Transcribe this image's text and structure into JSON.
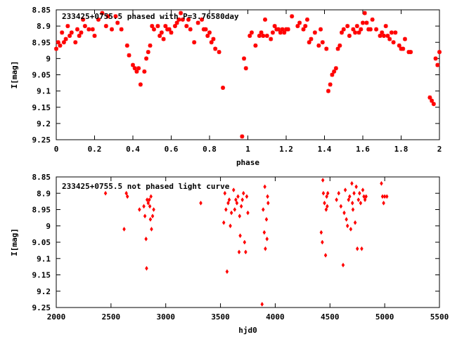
{
  "chart_data": [
    {
      "type": "scatter",
      "title": "233425+0755.5 phased with P=3.76580day",
      "xlabel": "phase",
      "ylabel": "I[mag]",
      "xlim": [
        0,
        2
      ],
      "ylim": [
        8.85,
        9.25
      ],
      "y_inverted": true,
      "marker": "star",
      "grid": false,
      "x_ticks": [
        "0",
        "0.2",
        "0.4",
        "0.6",
        "0.8",
        "1",
        "1.2",
        "1.4",
        "1.6",
        "1.8",
        "2"
      ],
      "y_ticks": [
        "8.85",
        "8.9",
        "8.95",
        "9",
        "9.05",
        "9.1",
        "9.15",
        "9.2",
        "9.25"
      ],
      "color": "#ff0000",
      "points": [
        [
          0.0,
          8.97
        ],
        [
          0.01,
          8.95
        ],
        [
          0.02,
          8.96
        ],
        [
          0.03,
          8.92
        ],
        [
          0.04,
          8.95
        ],
        [
          0.05,
          8.94
        ],
        [
          0.06,
          8.9
        ],
        [
          0.07,
          8.93
        ],
        [
          0.08,
          8.92
        ],
        [
          0.1,
          8.95
        ],
        [
          0.11,
          8.91
        ],
        [
          0.12,
          8.93
        ],
        [
          0.13,
          8.92
        ],
        [
          0.14,
          8.88
        ],
        [
          0.15,
          8.9
        ],
        [
          0.17,
          8.91
        ],
        [
          0.19,
          8.91
        ],
        [
          0.2,
          8.93
        ],
        [
          0.22,
          8.88
        ],
        [
          0.24,
          8.86
        ],
        [
          0.26,
          8.9
        ],
        [
          0.27,
          8.87
        ],
        [
          0.29,
          8.91
        ],
        [
          0.31,
          8.87
        ],
        [
          0.32,
          8.89
        ],
        [
          0.34,
          8.91
        ],
        [
          0.37,
          8.96
        ],
        [
          0.38,
          8.99
        ],
        [
          0.4,
          9.02
        ],
        [
          0.41,
          9.03
        ],
        [
          0.42,
          9.04
        ],
        [
          0.43,
          9.03
        ],
        [
          0.44,
          9.08
        ],
        [
          0.46,
          9.04
        ],
        [
          0.47,
          9.0
        ],
        [
          0.48,
          8.98
        ],
        [
          0.49,
          8.96
        ],
        [
          0.5,
          8.9
        ],
        [
          0.51,
          8.91
        ],
        [
          0.53,
          8.9
        ],
        [
          0.54,
          8.93
        ],
        [
          0.55,
          8.92
        ],
        [
          0.56,
          8.94
        ],
        [
          0.57,
          8.9
        ],
        [
          0.58,
          8.91
        ],
        [
          0.59,
          8.91
        ],
        [
          0.6,
          8.92
        ],
        [
          0.62,
          8.9
        ],
        [
          0.63,
          8.89
        ],
        [
          0.64,
          8.88
        ],
        [
          0.65,
          8.86
        ],
        [
          0.66,
          8.88
        ],
        [
          0.68,
          8.9
        ],
        [
          0.69,
          8.88
        ],
        [
          0.7,
          8.91
        ],
        [
          0.72,
          8.95
        ],
        [
          0.74,
          8.89
        ],
        [
          0.76,
          8.88
        ],
        [
          0.77,
          8.91
        ],
        [
          0.78,
          8.91
        ],
        [
          0.79,
          8.93
        ],
        [
          0.8,
          8.92
        ],
        [
          0.81,
          8.95
        ],
        [
          0.82,
          8.94
        ],
        [
          0.83,
          8.97
        ],
        [
          0.85,
          8.98
        ],
        [
          0.87,
          9.09
        ],
        [
          0.97,
          9.24
        ],
        [
          0.98,
          9.0
        ],
        [
          0.99,
          9.03
        ],
        [
          1.01,
          8.93
        ],
        [
          1.02,
          8.92
        ],
        [
          1.04,
          8.96
        ],
        [
          1.06,
          8.93
        ],
        [
          1.07,
          8.92
        ],
        [
          1.08,
          8.93
        ],
        [
          1.09,
          8.88
        ],
        [
          1.1,
          8.93
        ],
        [
          1.12,
          8.94
        ],
        [
          1.13,
          8.92
        ],
        [
          1.14,
          8.9
        ],
        [
          1.15,
          8.91
        ],
        [
          1.16,
          8.91
        ],
        [
          1.17,
          8.92
        ],
        [
          1.18,
          8.91
        ],
        [
          1.19,
          8.92
        ],
        [
          1.2,
          8.91
        ],
        [
          1.21,
          8.91
        ],
        [
          1.23,
          8.87
        ],
        [
          1.26,
          8.9
        ],
        [
          1.27,
          8.89
        ],
        [
          1.29,
          8.91
        ],
        [
          1.3,
          8.9
        ],
        [
          1.31,
          8.88
        ],
        [
          1.32,
          8.95
        ],
        [
          1.33,
          8.94
        ],
        [
          1.35,
          8.92
        ],
        [
          1.37,
          8.96
        ],
        [
          1.38,
          8.91
        ],
        [
          1.39,
          8.95
        ],
        [
          1.41,
          8.97
        ],
        [
          1.42,
          9.1
        ],
        [
          1.43,
          9.08
        ],
        [
          1.44,
          9.05
        ],
        [
          1.45,
          9.04
        ],
        [
          1.46,
          9.03
        ],
        [
          1.47,
          8.97
        ],
        [
          1.48,
          8.96
        ],
        [
          1.49,
          8.92
        ],
        [
          1.5,
          8.91
        ],
        [
          1.52,
          8.9
        ],
        [
          1.53,
          8.93
        ],
        [
          1.55,
          8.91
        ],
        [
          1.56,
          8.92
        ],
        [
          1.57,
          8.9
        ],
        [
          1.58,
          8.92
        ],
        [
          1.59,
          8.91
        ],
        [
          1.6,
          8.89
        ],
        [
          1.61,
          8.86
        ],
        [
          1.62,
          8.89
        ],
        [
          1.63,
          8.91
        ],
        [
          1.64,
          8.91
        ],
        [
          1.65,
          8.88
        ],
        [
          1.67,
          8.91
        ],
        [
          1.69,
          8.93
        ],
        [
          1.7,
          8.92
        ],
        [
          1.71,
          8.93
        ],
        [
          1.72,
          8.9
        ],
        [
          1.73,
          8.93
        ],
        [
          1.74,
          8.94
        ],
        [
          1.75,
          8.92
        ],
        [
          1.76,
          8.95
        ],
        [
          1.77,
          8.92
        ],
        [
          1.79,
          8.96
        ],
        [
          1.8,
          8.97
        ],
        [
          1.81,
          8.97
        ],
        [
          1.82,
          8.94
        ],
        [
          1.84,
          8.98
        ],
        [
          1.85,
          8.98
        ],
        [
          1.95,
          9.12
        ],
        [
          1.96,
          9.13
        ],
        [
          1.97,
          9.14
        ],
        [
          1.98,
          9.0
        ],
        [
          1.99,
          9.02
        ],
        [
          2.0,
          8.98
        ]
      ]
    },
    {
      "type": "scatter",
      "title": "233425+0755.5 not phased light curve",
      "xlabel": "hjd0",
      "ylabel": "I[mag]",
      "xlim": [
        2000,
        5500
      ],
      "ylim": [
        8.85,
        9.25
      ],
      "y_inverted": true,
      "marker": "diamond",
      "grid": false,
      "x_ticks": [
        "2000",
        "2500",
        "3000",
        "3500",
        "4000",
        "4500",
        "5000",
        "5500"
      ],
      "y_ticks": [
        "8.85",
        "8.9",
        "8.95",
        "9",
        "9.05",
        "9.1",
        "9.15",
        "9.2",
        "9.25"
      ],
      "color": "#ff0000",
      "points": [
        [
          2450,
          8.9
        ],
        [
          2620,
          9.01
        ],
        [
          2640,
          8.9
        ],
        [
          2650,
          8.91
        ],
        [
          2760,
          8.95
        ],
        [
          2800,
          8.94
        ],
        [
          2810,
          8.97
        ],
        [
          2820,
          9.04
        ],
        [
          2825,
          9.13
        ],
        [
          2830,
          8.92
        ],
        [
          2840,
          8.93
        ],
        [
          2850,
          8.92
        ],
        [
          2855,
          8.94
        ],
        [
          2860,
          8.98
        ],
        [
          2865,
          8.91
        ],
        [
          2870,
          9.01
        ],
        [
          2880,
          8.97
        ],
        [
          2890,
          8.95
        ],
        [
          3320,
          8.93
        ],
        [
          3530,
          8.99
        ],
        [
          3540,
          8.9
        ],
        [
          3550,
          8.95
        ],
        [
          3560,
          9.14
        ],
        [
          3570,
          8.93
        ],
        [
          3580,
          8.92
        ],
        [
          3590,
          9.0
        ],
        [
          3600,
          8.96
        ],
        [
          3620,
          8.89
        ],
        [
          3630,
          8.95
        ],
        [
          3640,
          8.92
        ],
        [
          3650,
          8.93
        ],
        [
          3660,
          8.91
        ],
        [
          3670,
          9.08
        ],
        [
          3675,
          8.97
        ],
        [
          3680,
          9.03
        ],
        [
          3690,
          8.94
        ],
        [
          3700,
          8.92
        ],
        [
          3710,
          8.9
        ],
        [
          3720,
          9.05
        ],
        [
          3730,
          9.08
        ],
        [
          3740,
          8.91
        ],
        [
          3750,
          8.96
        ],
        [
          3880,
          9.24
        ],
        [
          3890,
          8.95
        ],
        [
          3900,
          9.02
        ],
        [
          3905,
          8.88
        ],
        [
          3910,
          9.07
        ],
        [
          3920,
          8.98
        ],
        [
          3925,
          9.04
        ],
        [
          3930,
          8.91
        ],
        [
          3935,
          8.93
        ],
        [
          4420,
          9.02
        ],
        [
          4430,
          9.05
        ],
        [
          4435,
          8.86
        ],
        [
          4440,
          8.9
        ],
        [
          4450,
          8.93
        ],
        [
          4460,
          9.09
        ],
        [
          4465,
          8.95
        ],
        [
          4470,
          8.91
        ],
        [
          4475,
          8.94
        ],
        [
          4480,
          8.9
        ],
        [
          4560,
          8.92
        ],
        [
          4580,
          8.9
        ],
        [
          4600,
          8.94
        ],
        [
          4620,
          9.12
        ],
        [
          4630,
          8.96
        ],
        [
          4640,
          8.89
        ],
        [
          4650,
          8.98
        ],
        [
          4660,
          9.0
        ],
        [
          4670,
          8.92
        ],
        [
          4680,
          8.91
        ],
        [
          4690,
          9.01
        ],
        [
          4700,
          8.87
        ],
        [
          4705,
          8.93
        ],
        [
          4710,
          8.95
        ],
        [
          4720,
          8.9
        ],
        [
          4730,
          8.99
        ],
        [
          4740,
          8.88
        ],
        [
          4750,
          9.07
        ],
        [
          4760,
          8.92
        ],
        [
          4770,
          8.9
        ],
        [
          4780,
          8.93
        ],
        [
          4790,
          9.07
        ],
        [
          4800,
          8.89
        ],
        [
          4810,
          8.91
        ],
        [
          4820,
          8.92
        ],
        [
          4830,
          8.91
        ],
        [
          4970,
          8.87
        ],
        [
          4980,
          8.91
        ],
        [
          4990,
          8.93
        ],
        [
          5000,
          8.91
        ],
        [
          5020,
          8.91
        ]
      ]
    }
  ]
}
